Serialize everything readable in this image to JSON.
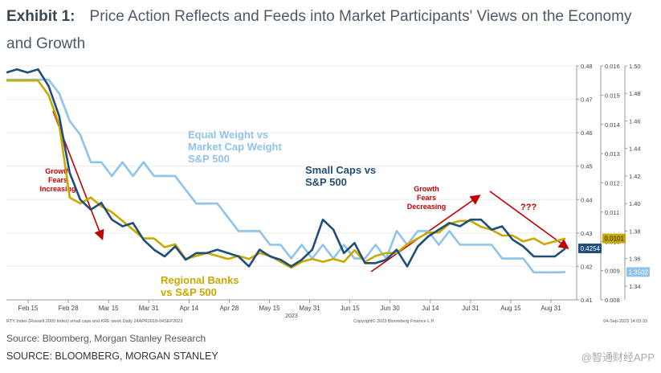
{
  "header": {
    "exhibit_label": "Exhibit 1:",
    "title": "Price Action Reflects and Feeds into Market Participants' Views on the Economy and Growth"
  },
  "chart_data": {
    "type": "line",
    "title": "Price Action Reflects and Feeds into Market Participants' Views on the Economy and Growth",
    "xlabel": "2023",
    "x_ticks": [
      "Feb 15",
      "Feb 28",
      "Mar 15",
      "Mar 31",
      "Apr 14",
      "Apr 28",
      "May 15",
      "May 31",
      "Jun 15",
      "Jun 30",
      "Jul 14",
      "Jul 31",
      "Aug 15",
      "Aug 31"
    ],
    "axes": {
      "y_small_caps": {
        "ylim": [
          0.41,
          0.48
        ],
        "ticks": [
          "0.48",
          "0.47",
          "0.46",
          "0.45",
          "0.44",
          "0.43",
          "0.42",
          "0.41"
        ]
      },
      "y_regional_banks": {
        "ylim": [
          0.008,
          0.016
        ],
        "ticks": [
          "0.016",
          "0.015",
          "0.014",
          "0.013",
          "0.012",
          "0.011",
          "0.010",
          "0.009",
          "0.008"
        ]
      },
      "y_equal_weight": {
        "ylim": [
          1.33,
          1.5
        ],
        "ticks": [
          "1.50",
          "1.48",
          "1.46",
          "1.44",
          "1.42",
          "1.40",
          "1.38",
          "1.36",
          "1.34"
        ]
      }
    },
    "series": [
      {
        "name": "Small Caps vs S&P 500",
        "axis": "y_small_caps",
        "color": "#1f4e79",
        "last_value_label": "0.4254",
        "values": [
          0.478,
          0.479,
          0.478,
          0.479,
          0.474,
          0.465,
          0.448,
          0.44,
          0.437,
          0.439,
          0.434,
          0.432,
          0.433,
          0.428,
          0.425,
          0.423,
          0.426,
          0.422,
          0.424,
          0.424,
          0.425,
          0.424,
          0.423,
          0.42,
          0.425,
          0.423,
          0.422,
          0.42,
          0.422,
          0.425,
          0.434,
          0.431,
          0.424,
          0.427,
          0.421,
          0.421,
          0.422,
          0.425,
          0.42,
          0.426,
          0.429,
          0.431,
          0.433,
          0.432,
          0.434,
          0.434,
          0.431,
          0.432,
          0.428,
          0.426,
          0.423,
          0.423,
          0.423,
          0.4254
        ]
      },
      {
        "name": "Regional Banks vs S&P 500",
        "axis": "y_regional_banks",
        "color": "#c9a800",
        "last_value_label": "0.0101",
        "values": [
          0.0155,
          0.0155,
          0.0155,
          0.0155,
          0.015,
          0.014,
          0.0115,
          0.0113,
          0.0115,
          0.0112,
          0.011,
          0.0107,
          0.0104,
          0.0101,
          0.0101,
          0.0098,
          0.0099,
          0.0094,
          0.0095,
          0.0096,
          0.0095,
          0.0094,
          0.0095,
          0.0094,
          0.0096,
          0.0095,
          0.0093,
          0.0091,
          0.0093,
          0.0094,
          0.0093,
          0.0094,
          0.0093,
          0.0097,
          0.0093,
          0.0095,
          0.0096,
          0.0096,
          0.0099,
          0.0101,
          0.0103,
          0.0103,
          0.0106,
          0.0107,
          0.0107,
          0.0105,
          0.0104,
          0.0102,
          0.0102,
          0.01,
          0.0101,
          0.0099,
          0.01,
          0.0101
        ]
      },
      {
        "name": "Equal Weight vs Market Cap Weight S&P 500",
        "axis": "y_equal_weight",
        "color": "#8fc3ea",
        "last_value_label": "1.3502",
        "values": [
          1.49,
          1.49,
          1.49,
          1.49,
          1.49,
          1.48,
          1.46,
          1.45,
          1.43,
          1.43,
          1.42,
          1.43,
          1.42,
          1.43,
          1.42,
          1.42,
          1.42,
          1.41,
          1.4,
          1.4,
          1.4,
          1.39,
          1.38,
          1.38,
          1.38,
          1.37,
          1.37,
          1.36,
          1.37,
          1.36,
          1.37,
          1.36,
          1.37,
          1.36,
          1.36,
          1.37,
          1.36,
          1.38,
          1.37,
          1.38,
          1.38,
          1.37,
          1.38,
          1.37,
          1.37,
          1.37,
          1.37,
          1.36,
          1.36,
          1.36,
          1.35,
          1.35,
          1.35,
          1.3502
        ]
      }
    ],
    "annotations": [
      {
        "text": "Growth Fears Increasing",
        "color": "#c00000"
      },
      {
        "text": "Equal Weight vs Market Cap Weight S&P 500",
        "color": "#8fc3ea"
      },
      {
        "text": "Small Caps vs S&P 500",
        "color": "#1f4e79"
      },
      {
        "text": "Growth Fears Decreasing",
        "color": "#c00000"
      },
      {
        "text": "???",
        "color": "#c00000"
      },
      {
        "text": "Regional Banks vs S&P 500",
        "color": "#c9a800"
      }
    ],
    "footer_notes": {
      "left": "RTY Index (Russell 2000 Index) small caps and KRE week  Daily 24APR2018-04SEP2023",
      "center": "Copyright© 2023 Bloomberg Finance L.P.",
      "right": "04-Sep-2023 14:03:33"
    }
  },
  "source_line_1": "Source: Bloomberg, Morgan Stanley Research",
  "source_line_2": "SOURCE: BLOOMBERG, MORGAN STANLEY",
  "watermark": "@智通财经APP",
  "colors": {
    "annotation_red": "#c00000",
    "small_caps": "#1f4e79",
    "regional_banks": "#c9a800",
    "equal_weight": "#8fc3ea"
  }
}
